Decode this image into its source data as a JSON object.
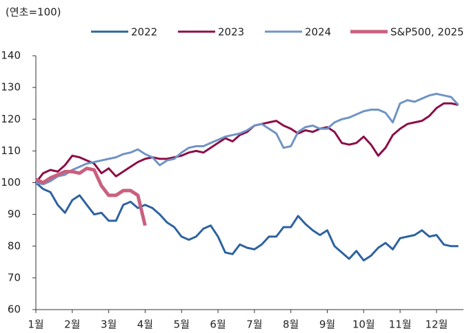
{
  "chart_data": {
    "type": "line",
    "title": "(연초=100)",
    "x": [
      1.0,
      1.2,
      1.4,
      1.6,
      1.8,
      2.0,
      2.2,
      2.4,
      2.6,
      2.8,
      3.0,
      3.2,
      3.4,
      3.6,
      3.8,
      4.0,
      4.2,
      4.4,
      4.6,
      4.8,
      5.0,
      5.2,
      5.4,
      5.6,
      5.8,
      6.0,
      6.2,
      6.4,
      6.6,
      6.8,
      7.0,
      7.2,
      7.4,
      7.6,
      7.8,
      8.0,
      8.2,
      8.4,
      8.6,
      8.8,
      9.0,
      9.2,
      9.4,
      9.6,
      9.8,
      10.0,
      10.2,
      10.4,
      10.6,
      10.8,
      11.0,
      11.2,
      11.4,
      11.6,
      11.8,
      12.0,
      12.2,
      12.4,
      12.6
    ],
    "series": [
      {
        "name": "2022",
        "color": "#2d62a0",
        "width": 3,
        "values": [
          100,
          98,
          97,
          93,
          90.5,
          94.5,
          96,
          93,
          90,
          90.5,
          88,
          88,
          93,
          94,
          92,
          93,
          92,
          90,
          87.5,
          86,
          83,
          82,
          83,
          85.5,
          86.5,
          83,
          78,
          77.5,
          80.5,
          79.5,
          79,
          80.5,
          83,
          83,
          86,
          86,
          89.5,
          87,
          85,
          83.5,
          85,
          80,
          78,
          76,
          78.5,
          75.5,
          77,
          79.5,
          81,
          79,
          82.5,
          83,
          83.5,
          85,
          83,
          83.5,
          80.5,
          80,
          80
        ]
      },
      {
        "name": "2023",
        "color": "#8c0d46",
        "width": 3,
        "values": [
          100,
          103,
          104,
          103.5,
          105.5,
          108.5,
          108,
          107,
          106,
          103,
          104.5,
          102,
          103.5,
          105,
          106.5,
          107.5,
          108,
          107.5,
          107.5,
          108,
          108.5,
          109.5,
          110,
          109.5,
          111,
          112.5,
          114,
          113,
          115,
          116,
          118,
          118.5,
          119,
          119.5,
          118,
          117,
          115.5,
          116.5,
          116,
          117,
          117.5,
          116,
          112.5,
          112,
          112.5,
          114.5,
          112,
          108.5,
          111,
          115,
          117,
          118.5,
          119,
          119.5,
          121,
          123.5,
          125,
          125,
          124.5
        ]
      },
      {
        "name": "2024",
        "color": "#6f93c4",
        "width": 3,
        "values": [
          100,
          99.5,
          100.5,
          102,
          102.5,
          104,
          105,
          106,
          106.5,
          107,
          107.5,
          108,
          109,
          109.5,
          110.5,
          109,
          108,
          105.5,
          107,
          107.5,
          109.5,
          111,
          111.5,
          111.5,
          112.5,
          113.5,
          114.5,
          115,
          115.5,
          116.5,
          118,
          118.5,
          117,
          115.5,
          111,
          111.5,
          116,
          117.5,
          118,
          117,
          117,
          119,
          120,
          120.5,
          121.5,
          122.5,
          123,
          123,
          122,
          119,
          125,
          126,
          125.5,
          126.5,
          127.5,
          128,
          127.5,
          127,
          124.5
        ]
      },
      {
        "name": "S&P500, 2025",
        "color": "#c9607f",
        "width": 5,
        "values": [
          101,
          100,
          101.5,
          102.5,
          103.5,
          103.5,
          103,
          104.5,
          104,
          99,
          96,
          96,
          97.5,
          97.5,
          96,
          86.5,
          null,
          null,
          null,
          null,
          null,
          null,
          null,
          null,
          null,
          null,
          null,
          null,
          null,
          null,
          null,
          null,
          null,
          null,
          null,
          null,
          null,
          null,
          null,
          null,
          null,
          null,
          null,
          null,
          null,
          null,
          null,
          null,
          null,
          null,
          null,
          null,
          null,
          null,
          null,
          null,
          null,
          null,
          null
        ]
      }
    ],
    "xlim": [
      1,
      12.74
    ],
    "xticks": [
      {
        "value": 1,
        "label": "1월"
      },
      {
        "value": 2,
        "label": "2월"
      },
      {
        "value": 3,
        "label": "3월"
      },
      {
        "value": 4,
        "label": "4월"
      },
      {
        "value": 5,
        "label": "5월"
      },
      {
        "value": 6,
        "label": "6월"
      },
      {
        "value": 7,
        "label": "7월"
      },
      {
        "value": 8,
        "label": "8월"
      },
      {
        "value": 9,
        "label": "9월"
      },
      {
        "value": 10,
        "label": "10월"
      },
      {
        "value": 11,
        "label": "11월"
      },
      {
        "value": 12,
        "label": "12월"
      }
    ],
    "ylim": [
      60,
      140
    ],
    "yticks": [
      60,
      70,
      80,
      90,
      100,
      110,
      120,
      130,
      140
    ],
    "grid": false,
    "legend": "top"
  }
}
